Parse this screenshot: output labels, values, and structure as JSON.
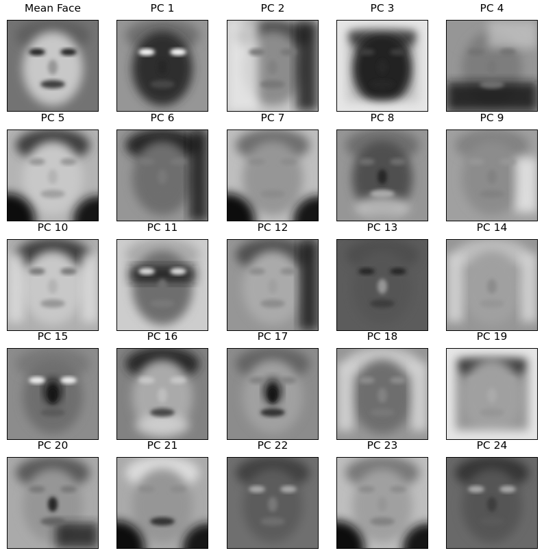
{
  "panels": [
    {
      "title": "Mean Face",
      "icon": "mean-face-image"
    },
    {
      "title": "PC 1",
      "icon": "eigenface-image"
    },
    {
      "title": "PC 2",
      "icon": "eigenface-image"
    },
    {
      "title": "PC 3",
      "icon": "eigenface-image"
    },
    {
      "title": "PC 4",
      "icon": "eigenface-image"
    },
    {
      "title": "PC 5",
      "icon": "eigenface-image"
    },
    {
      "title": "PC 6",
      "icon": "eigenface-image"
    },
    {
      "title": "PC 7",
      "icon": "eigenface-image"
    },
    {
      "title": "PC 8",
      "icon": "eigenface-image"
    },
    {
      "title": "PC 9",
      "icon": "eigenface-image"
    },
    {
      "title": "PC 10",
      "icon": "eigenface-image"
    },
    {
      "title": "PC 11",
      "icon": "eigenface-image"
    },
    {
      "title": "PC 12",
      "icon": "eigenface-image"
    },
    {
      "title": "PC 13",
      "icon": "eigenface-image"
    },
    {
      "title": "PC 14",
      "icon": "eigenface-image"
    },
    {
      "title": "PC 15",
      "icon": "eigenface-image"
    },
    {
      "title": "PC 16",
      "icon": "eigenface-image"
    },
    {
      "title": "PC 17",
      "icon": "eigenface-image"
    },
    {
      "title": "PC 18",
      "icon": "eigenface-image"
    },
    {
      "title": "PC 19",
      "icon": "eigenface-image"
    },
    {
      "title": "PC 20",
      "icon": "eigenface-image"
    },
    {
      "title": "PC 21",
      "icon": "eigenface-image"
    },
    {
      "title": "PC 22",
      "icon": "eigenface-image"
    },
    {
      "title": "PC 23",
      "icon": "eigenface-image"
    },
    {
      "title": "PC 24",
      "icon": "eigenface-image"
    }
  ]
}
